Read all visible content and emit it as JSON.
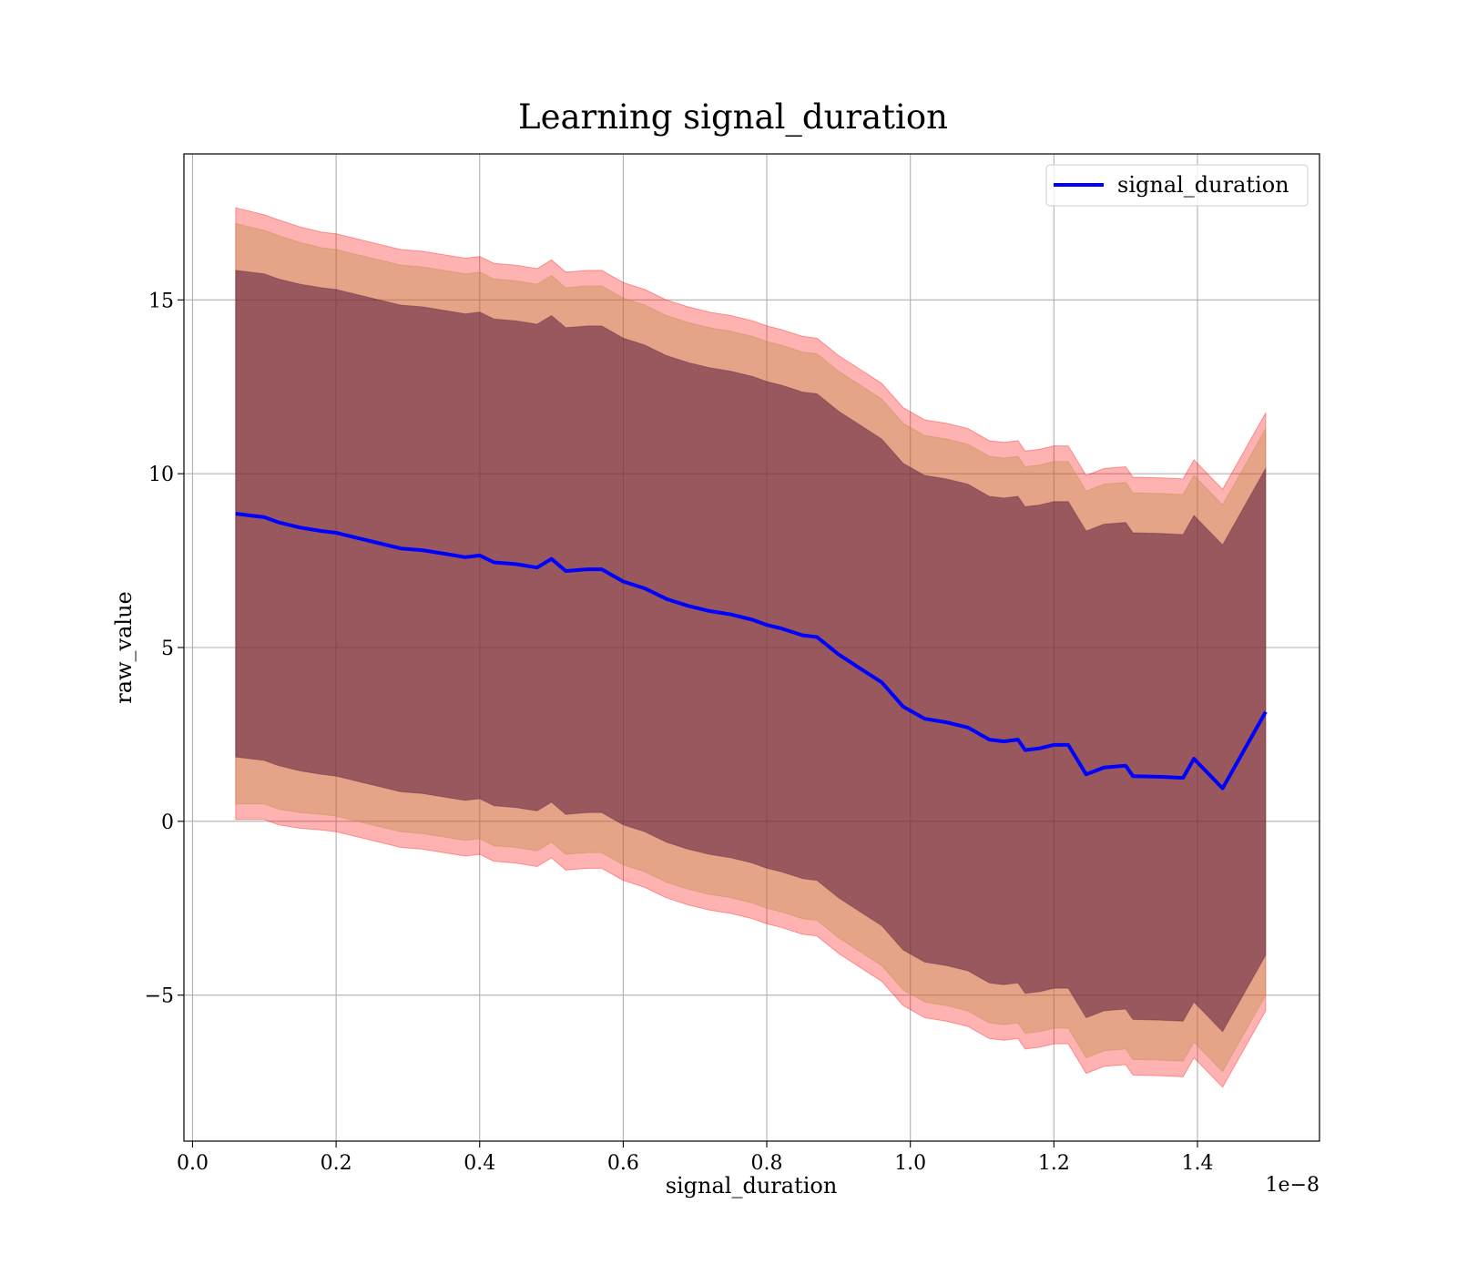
{
  "chart_data": {
    "type": "line",
    "title": "Learning signal_duration",
    "xlabel": "signal_duration",
    "ylabel": "raw_value",
    "x_scale_label": "1e−8",
    "xlim": [
      -0.012,
      1.57
    ],
    "ylim": [
      -9.2,
      19.2
    ],
    "x_ticks": [
      0.0,
      0.2,
      0.4,
      0.6,
      0.8,
      1.0,
      1.2,
      1.4
    ],
    "x_tick_labels": [
      "0.0",
      "0.2",
      "0.4",
      "0.6",
      "0.8",
      "1.0",
      "1.2",
      "1.4"
    ],
    "y_ticks": [
      -5,
      0,
      5,
      10,
      15
    ],
    "y_tick_labels": [
      "−5",
      "0",
      "5",
      "10",
      "15"
    ],
    "grid": true,
    "legend_position": "top-right",
    "x": [
      0.06,
      0.08,
      0.1,
      0.12,
      0.15,
      0.18,
      0.2,
      0.23,
      0.26,
      0.29,
      0.32,
      0.35,
      0.38,
      0.4,
      0.42,
      0.45,
      0.48,
      0.5,
      0.52,
      0.55,
      0.57,
      0.6,
      0.63,
      0.66,
      0.69,
      0.72,
      0.75,
      0.78,
      0.8,
      0.82,
      0.85,
      0.87,
      0.9,
      0.93,
      0.96,
      0.99,
      1.02,
      1.05,
      1.08,
      1.11,
      1.13,
      1.15,
      1.16,
      1.18,
      1.2,
      1.22,
      1.245,
      1.27,
      1.3,
      1.31,
      1.35,
      1.38,
      1.395,
      1.435,
      1.495
    ],
    "series": [
      {
        "name": "signal_duration",
        "color": "#0000ff",
        "values": [
          8.85,
          8.8,
          8.75,
          8.6,
          8.45,
          8.35,
          8.3,
          8.15,
          8.0,
          7.85,
          7.8,
          7.7,
          7.6,
          7.65,
          7.45,
          7.4,
          7.3,
          7.55,
          7.2,
          7.25,
          7.25,
          6.9,
          6.7,
          6.4,
          6.2,
          6.05,
          5.95,
          5.8,
          5.65,
          5.55,
          5.35,
          5.3,
          4.8,
          4.4,
          4.0,
          3.3,
          2.95,
          2.85,
          2.7,
          2.35,
          2.3,
          2.35,
          2.05,
          2.1,
          2.2,
          2.2,
          1.35,
          1.55,
          1.6,
          1.3,
          1.28,
          1.25,
          1.8,
          0.95,
          3.15
        ]
      }
    ],
    "bands": [
      {
        "color": "#ff0000",
        "opacity": 0.3,
        "upper": [
          17.65,
          17.55,
          17.45,
          17.3,
          17.1,
          16.95,
          16.9,
          16.75,
          16.6,
          16.45,
          16.4,
          16.3,
          16.2,
          16.25,
          16.05,
          16.0,
          15.9,
          16.15,
          15.8,
          15.85,
          15.85,
          15.5,
          15.3,
          15.0,
          14.8,
          14.65,
          14.55,
          14.4,
          14.25,
          14.15,
          13.95,
          13.9,
          13.4,
          13.0,
          12.6,
          11.9,
          11.55,
          11.45,
          11.3,
          10.95,
          10.9,
          10.95,
          10.65,
          10.7,
          10.8,
          10.8,
          9.95,
          10.15,
          10.2,
          9.9,
          9.88,
          9.85,
          10.4,
          9.55,
          11.75
        ],
        "lower": [
          0.05,
          0.05,
          0.05,
          -0.1,
          -0.2,
          -0.25,
          -0.3,
          -0.45,
          -0.6,
          -0.75,
          -0.8,
          -0.9,
          -1.0,
          -0.95,
          -1.15,
          -1.2,
          -1.3,
          -1.05,
          -1.4,
          -1.35,
          -1.35,
          -1.7,
          -1.9,
          -2.2,
          -2.4,
          -2.55,
          -2.65,
          -2.8,
          -2.95,
          -3.05,
          -3.25,
          -3.3,
          -3.8,
          -4.2,
          -4.6,
          -5.3,
          -5.65,
          -5.75,
          -5.9,
          -6.25,
          -6.3,
          -6.25,
          -6.55,
          -6.5,
          -6.4,
          -6.4,
          -7.25,
          -7.05,
          -7.0,
          -7.3,
          -7.32,
          -7.35,
          -6.8,
          -7.65,
          -5.45
        ]
      },
      {
        "color": "#b5893a",
        "opacity": 0.35,
        "upper": [
          17.2,
          17.1,
          17.0,
          16.85,
          16.65,
          16.5,
          16.45,
          16.3,
          16.15,
          16.0,
          15.95,
          15.85,
          15.75,
          15.8,
          15.6,
          15.55,
          15.45,
          15.7,
          15.35,
          15.4,
          15.4,
          15.05,
          14.85,
          14.55,
          14.35,
          14.2,
          14.1,
          13.95,
          13.8,
          13.7,
          13.5,
          13.45,
          12.95,
          12.55,
          12.15,
          11.45,
          11.1,
          11.0,
          10.85,
          10.5,
          10.45,
          10.5,
          10.2,
          10.25,
          10.35,
          10.35,
          9.5,
          9.7,
          9.75,
          9.45,
          9.43,
          9.4,
          9.95,
          9.1,
          11.3
        ],
        "lower": [
          0.5,
          0.5,
          0.5,
          0.35,
          0.25,
          0.2,
          0.15,
          0.0,
          -0.15,
          -0.3,
          -0.35,
          -0.45,
          -0.55,
          -0.5,
          -0.7,
          -0.75,
          -0.85,
          -0.6,
          -0.95,
          -0.9,
          -0.9,
          -1.25,
          -1.45,
          -1.75,
          -1.95,
          -2.1,
          -2.2,
          -2.35,
          -2.5,
          -2.6,
          -2.8,
          -2.85,
          -3.35,
          -3.75,
          -4.15,
          -4.85,
          -5.2,
          -5.3,
          -5.45,
          -5.8,
          -5.85,
          -5.8,
          -6.1,
          -6.05,
          -5.95,
          -5.95,
          -6.8,
          -6.6,
          -6.55,
          -6.85,
          -6.87,
          -6.9,
          -6.35,
          -7.2,
          -5.0
        ]
      },
      {
        "color": "#5a1a3a",
        "opacity": 0.55,
        "upper": [
          15.85,
          15.8,
          15.75,
          15.6,
          15.45,
          15.35,
          15.3,
          15.15,
          15.0,
          14.85,
          14.8,
          14.7,
          14.6,
          14.65,
          14.45,
          14.4,
          14.3,
          14.55,
          14.2,
          14.25,
          14.25,
          13.9,
          13.7,
          13.4,
          13.2,
          13.05,
          12.95,
          12.8,
          12.65,
          12.55,
          12.35,
          12.3,
          11.8,
          11.4,
          11.0,
          10.3,
          9.95,
          9.85,
          9.7,
          9.35,
          9.3,
          9.35,
          9.05,
          9.1,
          9.2,
          9.2,
          8.35,
          8.55,
          8.6,
          8.3,
          8.28,
          8.25,
          8.8,
          7.95,
          10.15
        ],
        "lower": [
          1.85,
          1.8,
          1.75,
          1.6,
          1.45,
          1.35,
          1.3,
          1.15,
          1.0,
          0.85,
          0.8,
          0.7,
          0.6,
          0.65,
          0.45,
          0.4,
          0.3,
          0.55,
          0.2,
          0.25,
          0.25,
          -0.1,
          -0.3,
          -0.6,
          -0.8,
          -0.95,
          -1.05,
          -1.2,
          -1.35,
          -1.45,
          -1.65,
          -1.7,
          -2.2,
          -2.6,
          -3.0,
          -3.7,
          -4.05,
          -4.15,
          -4.3,
          -4.65,
          -4.7,
          -4.65,
          -4.95,
          -4.9,
          -4.8,
          -4.8,
          -5.65,
          -5.45,
          -5.4,
          -5.7,
          -5.72,
          -5.75,
          -5.2,
          -6.05,
          -3.85
        ]
      }
    ]
  }
}
